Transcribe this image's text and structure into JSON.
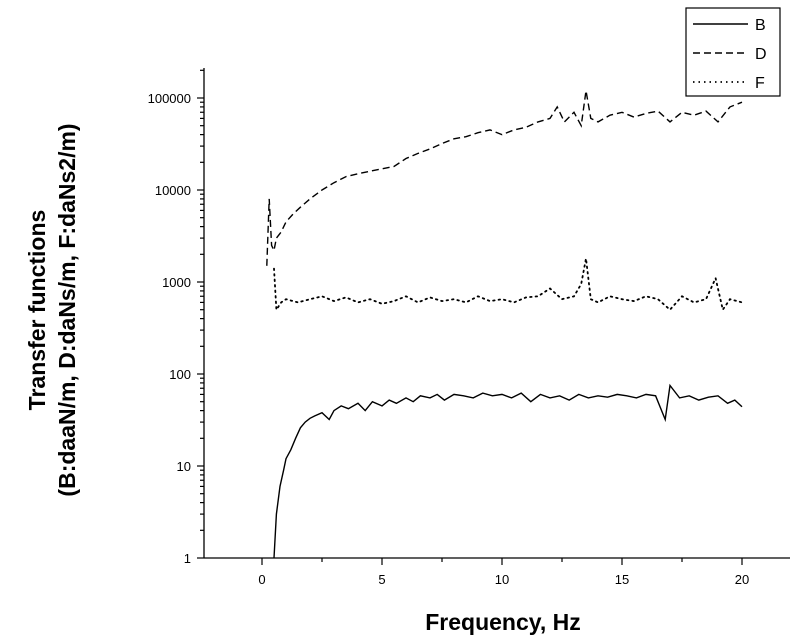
{
  "chart_data": {
    "type": "line",
    "title": "",
    "xlabel": "Frequency, Hz",
    "ylabel_line1": "Transfer functions",
    "ylabel_line2": "(B:daaN/m, D:daNs/m, F:daNs2/m)",
    "x_scale": "linear",
    "y_scale": "log",
    "xlim": [
      -2.5,
      22.5
    ],
    "ylim": [
      1,
      200000
    ],
    "x_ticks": [
      0,
      5,
      10,
      15,
      20
    ],
    "x_tick_labels": [
      "0",
      "5",
      "10",
      "15",
      "20"
    ],
    "y_ticks": [
      1,
      10,
      100,
      1000,
      10000,
      100000
    ],
    "y_tick_labels": [
      "1",
      "10",
      "100",
      "1000",
      "10000",
      "100000"
    ],
    "grid": false,
    "legend_position": "top-right",
    "series": [
      {
        "name": "B",
        "line_style": "solid",
        "color": "#000000",
        "x": [
          0.5,
          0.6,
          0.75,
          0.9,
          1.0,
          1.2,
          1.4,
          1.6,
          1.8,
          2.0,
          2.2,
          2.5,
          2.8,
          3.0,
          3.3,
          3.6,
          4.0,
          4.3,
          4.6,
          5.0,
          5.3,
          5.6,
          6.0,
          6.3,
          6.6,
          7.0,
          7.3,
          7.6,
          8.0,
          8.4,
          8.8,
          9.2,
          9.6,
          10.0,
          10.4,
          10.8,
          11.2,
          11.6,
          12.0,
          12.4,
          12.8,
          13.2,
          13.6,
          14.0,
          14.4,
          14.8,
          15.2,
          15.6,
          16.0,
          16.4,
          16.8,
          17.0,
          17.4,
          17.8,
          18.2,
          18.6,
          19.0,
          19.4,
          19.7,
          20.0
        ],
        "values": [
          1,
          3,
          6,
          9,
          12,
          15,
          20,
          26,
          30,
          33,
          35,
          38,
          32,
          40,
          45,
          42,
          48,
          40,
          50,
          45,
          52,
          48,
          55,
          50,
          58,
          55,
          60,
          52,
          60,
          58,
          55,
          62,
          58,
          60,
          55,
          62,
          50,
          60,
          55,
          58,
          52,
          60,
          55,
          58,
          56,
          60,
          58,
          55,
          60,
          58,
          32,
          75,
          55,
          58,
          52,
          56,
          58,
          48,
          52,
          44
        ]
      },
      {
        "name": "D",
        "line_style": "dashed",
        "color": "#000000",
        "x": [
          0.2,
          0.3,
          0.4,
          0.5,
          0.6,
          0.8,
          1.0,
          1.3,
          1.6,
          2.0,
          2.5,
          3.0,
          3.5,
          4.0,
          4.5,
          5.0,
          5.5,
          6.0,
          6.5,
          7.0,
          7.5,
          8.0,
          8.5,
          9.0,
          9.5,
          10.0,
          10.5,
          11.0,
          11.5,
          12.0,
          12.3,
          12.6,
          13.0,
          13.3,
          13.5,
          13.7,
          14.0,
          14.5,
          15.0,
          15.5,
          16.0,
          16.5,
          17.0,
          17.5,
          18.0,
          18.5,
          19.0,
          19.5,
          20.0
        ],
        "values": [
          1500,
          8000,
          2500,
          2200,
          3000,
          3500,
          4500,
          5500,
          6500,
          8000,
          10000,
          12000,
          14000,
          15000,
          16000,
          17000,
          18000,
          22000,
          25000,
          28000,
          32000,
          36000,
          38000,
          42000,
          45000,
          40000,
          45000,
          48000,
          55000,
          60000,
          80000,
          55000,
          70000,
          50000,
          120000,
          60000,
          55000,
          65000,
          70000,
          62000,
          68000,
          72000,
          55000,
          70000,
          65000,
          72000,
          55000,
          80000,
          90000
        ]
      },
      {
        "name": "F",
        "line_style": "dotted",
        "color": "#000000",
        "x": [
          0.5,
          0.6,
          0.8,
          1.0,
          1.5,
          2.0,
          2.5,
          3.0,
          3.5,
          4.0,
          4.5,
          5.0,
          5.5,
          6.0,
          6.5,
          7.0,
          7.5,
          8.0,
          8.5,
          9.0,
          9.5,
          10.0,
          10.5,
          11.0,
          11.5,
          12.0,
          12.5,
          13.0,
          13.3,
          13.5,
          13.7,
          14.0,
          14.5,
          15.0,
          15.5,
          16.0,
          16.5,
          17.0,
          17.5,
          18.0,
          18.5,
          18.9,
          19.2,
          19.5,
          20.0
        ],
        "values": [
          1400,
          500,
          600,
          650,
          600,
          650,
          700,
          620,
          680,
          600,
          650,
          580,
          620,
          700,
          600,
          680,
          620,
          650,
          600,
          700,
          620,
          650,
          600,
          680,
          700,
          850,
          650,
          700,
          950,
          1800,
          650,
          600,
          700,
          650,
          620,
          700,
          650,
          500,
          700,
          600,
          650,
          1100,
          500,
          650,
          600
        ]
      }
    ]
  }
}
